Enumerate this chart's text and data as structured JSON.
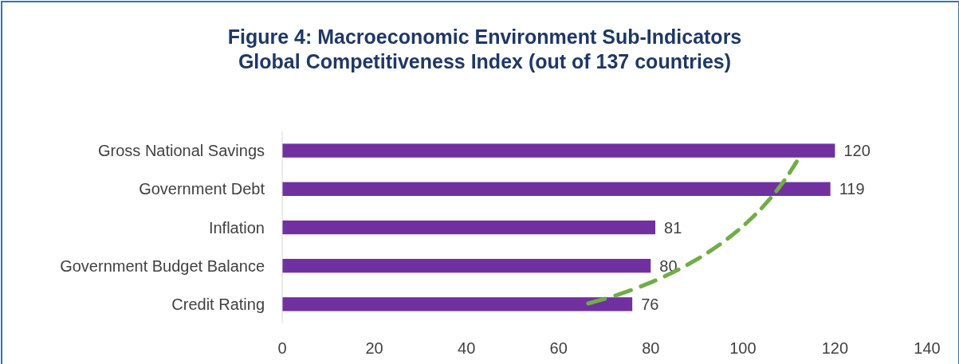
{
  "chart_data": {
    "type": "bar",
    "orientation": "horizontal",
    "title": "Figure 4: Macroeconomic Environment Sub-Indicators\nGlobal Competitiveness Index (out of 137 countries)",
    "categories": [
      "Gross National Savings",
      "Government Debt",
      "Inflation",
      "Government Budget Balance",
      "Credit Rating"
    ],
    "values": [
      120,
      119,
      81,
      80,
      76
    ],
    "color": "#7030a0",
    "xlim": [
      0,
      140
    ],
    "xticks": [
      0,
      20,
      40,
      60,
      80,
      100,
      120,
      140
    ],
    "grid": false,
    "data_labels": true
  }
}
